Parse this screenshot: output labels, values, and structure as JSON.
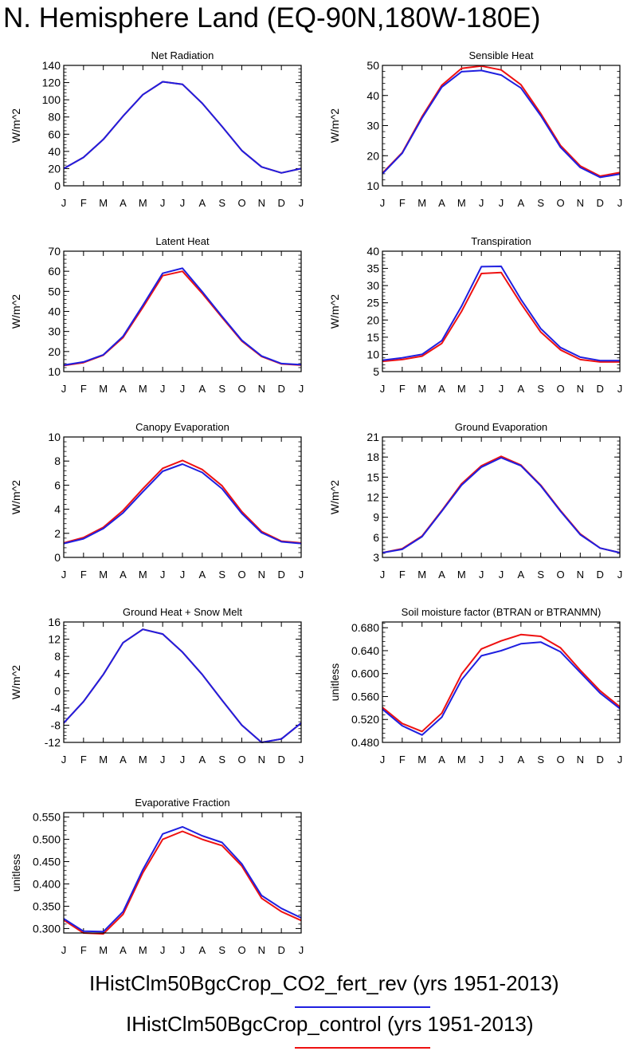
{
  "title": "N. Hemisphere Land (EQ-90N,180W-180E)",
  "colors": {
    "exp": "#1f1fe0",
    "ctl": "#ee1111"
  },
  "legend": [
    {
      "label": "IHistClm50BgcCrop_CO2_fert_rev (yrs 1951-2013)",
      "color": "#1f1fe0"
    },
    {
      "label": "IHistClm50BgcCrop_control (yrs 1951-2013)",
      "color": "#ee1111"
    }
  ],
  "chart_data": [
    {
      "type": "line",
      "title": "Net Radiation",
      "ylabel": "W/m^2",
      "categories": [
        "J",
        "F",
        "M",
        "A",
        "M",
        "J",
        "J",
        "A",
        "S",
        "O",
        "N",
        "D",
        "J"
      ],
      "ylim": [
        0,
        140
      ],
      "yticks": [
        "0",
        "20",
        "40",
        "60",
        "80",
        "100",
        "120",
        "140"
      ],
      "series": [
        {
          "color": "#ee1111",
          "values": [
            20,
            33,
            54,
            81,
            106,
            121,
            118,
            96,
            69,
            41,
            22,
            15,
            20
          ]
        },
        {
          "color": "#1f1fe0",
          "values": [
            20,
            33,
            54,
            81,
            106,
            121,
            118,
            96,
            69,
            41,
            22,
            15,
            20
          ]
        }
      ]
    },
    {
      "type": "line",
      "title": "Sensible Heat",
      "ylabel": "W/m^2",
      "categories": [
        "J",
        "F",
        "M",
        "A",
        "M",
        "J",
        "J",
        "A",
        "S",
        "O",
        "N",
        "D",
        "J"
      ],
      "ylim": [
        10,
        50
      ],
      "yticks": [
        "10",
        "20",
        "30",
        "40",
        "50"
      ],
      "series": [
        {
          "color": "#ee1111",
          "values": [
            14.2,
            21,
            33,
            43.4,
            49,
            49.8,
            48.5,
            43.6,
            34,
            23.4,
            16.6,
            13.2,
            14.4
          ]
        },
        {
          "color": "#1f1fe0",
          "values": [
            14,
            20.8,
            32.5,
            42.8,
            47.9,
            48.3,
            46.8,
            42.5,
            33.3,
            22.8,
            16.1,
            12.8,
            13.9
          ]
        }
      ]
    },
    {
      "type": "line",
      "title": "Latent Heat",
      "ylabel": "W/m^2",
      "categories": [
        "J",
        "F",
        "M",
        "A",
        "M",
        "J",
        "J",
        "A",
        "S",
        "O",
        "N",
        "D",
        "J"
      ],
      "ylim": [
        10,
        70
      ],
      "yticks": [
        "10",
        "20",
        "30",
        "40",
        "50",
        "60",
        "70"
      ],
      "series": [
        {
          "color": "#ee1111",
          "values": [
            13,
            14.5,
            18.2,
            27,
            42,
            57.8,
            60,
            49,
            37,
            25.2,
            17.5,
            13.8,
            13.2
          ]
        },
        {
          "color": "#1f1fe0",
          "values": [
            13.2,
            14.8,
            18.4,
            27.6,
            43,
            59,
            61.5,
            49.8,
            37.5,
            25.6,
            17.8,
            14,
            13.4
          ]
        }
      ]
    },
    {
      "type": "line",
      "title": "Transpiration",
      "ylabel": "W/m^2",
      "categories": [
        "J",
        "F",
        "M",
        "A",
        "M",
        "J",
        "J",
        "A",
        "S",
        "O",
        "N",
        "D",
        "J"
      ],
      "ylim": [
        5,
        40
      ],
      "yticks": [
        "5",
        "10",
        "15",
        "20",
        "25",
        "30",
        "35",
        "40"
      ],
      "series": [
        {
          "color": "#ee1111",
          "values": [
            8,
            8.5,
            9.5,
            13.2,
            22.5,
            33.5,
            33.8,
            24.8,
            16.5,
            11.3,
            8.5,
            7.8,
            7.8
          ]
        },
        {
          "color": "#1f1fe0",
          "values": [
            8.3,
            9,
            10,
            14,
            24,
            35.5,
            35.6,
            26,
            17.5,
            12,
            9.2,
            8.2,
            8.2
          ]
        }
      ]
    },
    {
      "type": "line",
      "title": "Canopy Evaporation",
      "ylabel": "W/m^2",
      "categories": [
        "J",
        "F",
        "M",
        "A",
        "M",
        "J",
        "J",
        "A",
        "S",
        "O",
        "N",
        "D",
        "J"
      ],
      "ylim": [
        0,
        10
      ],
      "yticks": [
        "0",
        "2",
        "4",
        "6",
        "8",
        "10"
      ],
      "series": [
        {
          "color": "#ee1111",
          "values": [
            1.2,
            1.65,
            2.5,
            3.9,
            5.7,
            7.4,
            8.05,
            7.3,
            5.95,
            3.8,
            2.15,
            1.35,
            1.2
          ]
        },
        {
          "color": "#1f1fe0",
          "values": [
            1.15,
            1.55,
            2.4,
            3.7,
            5.45,
            7.15,
            7.75,
            7.05,
            5.7,
            3.65,
            2.05,
            1.3,
            1.15
          ]
        }
      ]
    },
    {
      "type": "line",
      "title": "Ground Evaporation",
      "ylabel": "W/m^2",
      "categories": [
        "J",
        "F",
        "M",
        "A",
        "M",
        "J",
        "J",
        "A",
        "S",
        "O",
        "N",
        "D",
        "J"
      ],
      "ylim": [
        3,
        21
      ],
      "yticks": [
        "3",
        "6",
        "9",
        "12",
        "15",
        "18",
        "21"
      ],
      "series": [
        {
          "color": "#ee1111",
          "values": [
            3.7,
            4.3,
            6.2,
            10,
            14,
            16.7,
            18.1,
            16.8,
            13.8,
            10,
            6.5,
            4.4,
            3.7
          ]
        },
        {
          "color": "#1f1fe0",
          "values": [
            3.7,
            4.2,
            6.1,
            9.9,
            13.8,
            16.5,
            17.9,
            16.7,
            13.7,
            9.9,
            6.4,
            4.4,
            3.7
          ]
        }
      ]
    },
    {
      "type": "line",
      "title": "Ground Heat + Snow Melt",
      "ylabel": "W/m^2",
      "categories": [
        "J",
        "F",
        "M",
        "A",
        "M",
        "J",
        "J",
        "A",
        "S",
        "O",
        "N",
        "D",
        "J"
      ],
      "ylim": [
        -12,
        16
      ],
      "yticks": [
        "-12",
        "-8",
        "-4",
        "0",
        "4",
        "8",
        "12",
        "16"
      ],
      "series": [
        {
          "color": "#ee1111",
          "values": [
            -7.5,
            -2.5,
            3.8,
            11.2,
            14.3,
            13.2,
            9,
            3.8,
            -2.2,
            -8,
            -12,
            -11.2,
            -7.5
          ]
        },
        {
          "color": "#1f1fe0",
          "values": [
            -7.5,
            -2.5,
            3.8,
            11.2,
            14.3,
            13.2,
            9,
            3.8,
            -2.2,
            -8,
            -12,
            -11.2,
            -7.5
          ]
        }
      ]
    },
    {
      "type": "line",
      "title": "Soil moisture factor (BTRAN or BTRANMN)",
      "ylabel": "unitless",
      "categories": [
        "J",
        "F",
        "M",
        "A",
        "M",
        "J",
        "J",
        "A",
        "S",
        "O",
        "N",
        "D",
        "J"
      ],
      "ylim": [
        0.48,
        0.69
      ],
      "yticks": [
        "0.480",
        "0.520",
        "0.560",
        "0.600",
        "0.640",
        "0.680"
      ],
      "series": [
        {
          "color": "#ee1111",
          "values": [
            0.541,
            0.513,
            0.499,
            0.531,
            0.599,
            0.643,
            0.657,
            0.668,
            0.665,
            0.645,
            0.606,
            0.57,
            0.542
          ]
        },
        {
          "color": "#1f1fe0",
          "values": [
            0.538,
            0.509,
            0.493,
            0.524,
            0.589,
            0.631,
            0.64,
            0.652,
            0.655,
            0.638,
            0.602,
            0.566,
            0.539
          ]
        }
      ]
    },
    {
      "type": "line",
      "title": "Evaporative Fraction",
      "ylabel": "unitless",
      "categories": [
        "J",
        "F",
        "M",
        "A",
        "M",
        "J",
        "J",
        "A",
        "S",
        "O",
        "N",
        "D",
        "J"
      ],
      "ylim": [
        0.29,
        0.56
      ],
      "yticks": [
        "0.300",
        "0.350",
        "0.400",
        "0.450",
        "0.500",
        "0.550"
      ],
      "series": [
        {
          "color": "#ee1111",
          "values": [
            0.319,
            0.29,
            0.288,
            0.332,
            0.425,
            0.5,
            0.518,
            0.5,
            0.486,
            0.44,
            0.368,
            0.338,
            0.318
          ]
        },
        {
          "color": "#1f1fe0",
          "values": [
            0.322,
            0.294,
            0.293,
            0.338,
            0.432,
            0.512,
            0.528,
            0.508,
            0.493,
            0.445,
            0.374,
            0.345,
            0.324
          ]
        }
      ]
    }
  ]
}
